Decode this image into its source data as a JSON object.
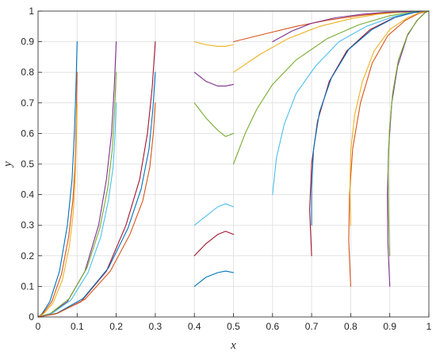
{
  "chart_data": {
    "type": "line",
    "title": "",
    "xlabel": "x",
    "ylabel": "y",
    "xlim": [
      0,
      1
    ],
    "ylim": [
      0,
      1
    ],
    "xticks": [
      "0",
      "0.1",
      "0.2",
      "0.3",
      "0.4",
      "0.5",
      "0.6",
      "0.7",
      "0.8",
      "0.9",
      "1"
    ],
    "yticks": [
      "0",
      "0.1",
      "0.2",
      "0.3",
      "0.4",
      "0.5",
      "0.6",
      "0.7",
      "0.8",
      "0.9",
      "1"
    ],
    "grid": true,
    "legend": "none",
    "colors": [
      "#0072BD",
      "#D95319",
      "#EDB120",
      "#7E2F8E",
      "#77AC30",
      "#4DBEEE",
      "#A2142F"
    ],
    "series": [
      {
        "x": [
          0.1,
          0.097,
          0.093,
          0.087,
          0.075,
          0.055,
          0.03,
          0.01,
          0.0
        ],
        "y": [
          0.9,
          0.75,
          0.6,
          0.45,
          0.3,
          0.15,
          0.05,
          0.01,
          0.0
        ]
      },
      {
        "x": [
          0.1,
          0.098,
          0.095,
          0.089,
          0.078,
          0.06,
          0.035,
          0.012,
          0.0
        ],
        "y": [
          0.8,
          0.65,
          0.5,
          0.38,
          0.26,
          0.14,
          0.05,
          0.01,
          0.0
        ]
      },
      {
        "x": [
          0.1,
          0.098,
          0.095,
          0.09,
          0.08,
          0.062,
          0.038,
          0.014,
          0.0
        ],
        "y": [
          0.7,
          0.58,
          0.45,
          0.34,
          0.23,
          0.12,
          0.045,
          0.01,
          0.0
        ]
      },
      {
        "x": [
          0.2,
          0.195,
          0.188,
          0.175,
          0.155,
          0.12,
          0.075,
          0.03,
          0.0
        ],
        "y": [
          0.9,
          0.75,
          0.6,
          0.45,
          0.3,
          0.15,
          0.05,
          0.01,
          0.0
        ]
      },
      {
        "x": [
          0.2,
          0.196,
          0.19,
          0.178,
          0.158,
          0.125,
          0.08,
          0.032,
          0.0
        ],
        "y": [
          0.8,
          0.68,
          0.55,
          0.42,
          0.29,
          0.16,
          0.06,
          0.012,
          0.0
        ]
      },
      {
        "x": [
          0.2,
          0.197,
          0.192,
          0.18,
          0.16,
          0.128,
          0.084,
          0.035,
          0.0
        ],
        "y": [
          0.7,
          0.6,
          0.49,
          0.38,
          0.26,
          0.145,
          0.055,
          0.011,
          0.0
        ]
      },
      {
        "x": [
          0.3,
          0.292,
          0.28,
          0.26,
          0.225,
          0.175,
          0.11,
          0.045,
          0.0
        ],
        "y": [
          0.9,
          0.75,
          0.6,
          0.45,
          0.3,
          0.15,
          0.05,
          0.01,
          0.0
        ]
      },
      {
        "x": [
          0.3,
          0.294,
          0.284,
          0.264,
          0.23,
          0.18,
          0.115,
          0.048,
          0.0
        ],
        "y": [
          0.8,
          0.68,
          0.55,
          0.42,
          0.29,
          0.16,
          0.06,
          0.012,
          0.0
        ]
      },
      {
        "x": [
          0.3,
          0.295,
          0.286,
          0.268,
          0.235,
          0.185,
          0.12,
          0.05,
          0.0
        ],
        "y": [
          0.7,
          0.6,
          0.49,
          0.38,
          0.27,
          0.15,
          0.058,
          0.012,
          0.0
        ]
      },
      {
        "x": [
          0.4,
          0.43,
          0.46,
          0.48,
          0.5
        ],
        "y": [
          0.9,
          0.89,
          0.885,
          0.885,
          0.89
        ]
      },
      {
        "x": [
          0.4,
          0.43,
          0.46,
          0.48,
          0.5
        ],
        "y": [
          0.8,
          0.77,
          0.755,
          0.755,
          0.76
        ]
      },
      {
        "x": [
          0.4,
          0.43,
          0.46,
          0.48,
          0.5
        ],
        "y": [
          0.7,
          0.65,
          0.61,
          0.59,
          0.6
        ]
      },
      {
        "x": [
          0.4,
          0.43,
          0.46,
          0.48,
          0.5
        ],
        "y": [
          0.3,
          0.33,
          0.36,
          0.37,
          0.36
        ]
      },
      {
        "x": [
          0.4,
          0.43,
          0.46,
          0.48,
          0.5
        ],
        "y": [
          0.2,
          0.24,
          0.27,
          0.28,
          0.27
        ]
      },
      {
        "x": [
          0.4,
          0.43,
          0.46,
          0.48,
          0.5
        ],
        "y": [
          0.1,
          0.13,
          0.145,
          0.15,
          0.145
        ]
      },
      {
        "x": [
          0.5,
          0.58,
          0.66,
          0.74,
          0.82,
          0.88,
          0.93,
          0.97,
          1.0
        ],
        "y": [
          0.9,
          0.925,
          0.95,
          0.97,
          0.985,
          0.993,
          0.997,
          0.999,
          1.0
        ]
      },
      {
        "x": [
          0.5,
          0.57,
          0.64,
          0.72,
          0.8,
          0.87,
          0.93,
          0.97,
          1.0
        ],
        "y": [
          0.8,
          0.86,
          0.91,
          0.95,
          0.975,
          0.99,
          0.996,
          0.999,
          1.0
        ]
      },
      {
        "x": [
          0.6,
          0.65,
          0.7,
          0.76,
          0.83,
          0.89,
          0.94,
          0.98,
          1.0
        ],
        "y": [
          0.9,
          0.935,
          0.96,
          0.978,
          0.99,
          0.996,
          0.998,
          0.9995,
          1.0
        ]
      },
      {
        "x": [
          0.5,
          0.53,
          0.56,
          0.6,
          0.66,
          0.74,
          0.82,
          0.9,
          0.96,
          1.0
        ],
        "y": [
          0.5,
          0.6,
          0.68,
          0.76,
          0.84,
          0.91,
          0.955,
          0.985,
          0.997,
          1.0
        ]
      },
      {
        "x": [
          0.6,
          0.61,
          0.63,
          0.66,
          0.71,
          0.77,
          0.84,
          0.91,
          0.96,
          1.0
        ],
        "y": [
          0.4,
          0.52,
          0.63,
          0.73,
          0.82,
          0.9,
          0.95,
          0.982,
          0.996,
          1.0
        ]
      },
      {
        "x": [
          0.7,
          0.695,
          0.7,
          0.715,
          0.745,
          0.79,
          0.85,
          0.91,
          0.96,
          1.0
        ],
        "y": [
          0.2,
          0.35,
          0.5,
          0.64,
          0.77,
          0.87,
          0.94,
          0.978,
          0.995,
          1.0
        ]
      },
      {
        "x": [
          0.7,
          0.7,
          0.705,
          0.72,
          0.75,
          0.795,
          0.855,
          0.915,
          0.965,
          1.0
        ],
        "y": [
          0.3,
          0.42,
          0.55,
          0.67,
          0.78,
          0.875,
          0.94,
          0.98,
          0.996,
          1.0
        ]
      },
      {
        "x": [
          0.8,
          0.795,
          0.797,
          0.805,
          0.825,
          0.855,
          0.895,
          0.94,
          0.975,
          1.0
        ],
        "y": [
          0.1,
          0.25,
          0.4,
          0.55,
          0.7,
          0.83,
          0.92,
          0.97,
          0.993,
          1.0
        ]
      },
      {
        "x": [
          0.8,
          0.798,
          0.8,
          0.81,
          0.83,
          0.86,
          0.9,
          0.945,
          0.978,
          1.0
        ],
        "y": [
          0.3,
          0.42,
          0.54,
          0.66,
          0.77,
          0.87,
          0.94,
          0.978,
          0.996,
          1.0
        ]
      },
      {
        "x": [
          0.9,
          0.895,
          0.894,
          0.897,
          0.905,
          0.92,
          0.945,
          0.97,
          0.99,
          1.0
        ],
        "y": [
          0.1,
          0.25,
          0.4,
          0.55,
          0.7,
          0.82,
          0.92,
          0.97,
          0.995,
          1.0
        ]
      },
      {
        "x": [
          0.9,
          0.897,
          0.896,
          0.899,
          0.907,
          0.922,
          0.946,
          0.972,
          0.991,
          1.0
        ],
        "y": [
          0.2,
          0.34,
          0.48,
          0.61,
          0.73,
          0.84,
          0.925,
          0.972,
          0.995,
          1.0
        ]
      }
    ]
  }
}
